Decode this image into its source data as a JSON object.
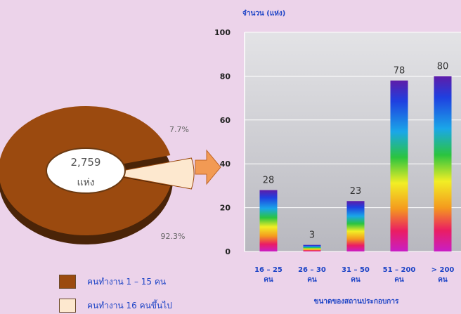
{
  "pie": {
    "center_value": "2,759",
    "center_unit": "แห่ง",
    "slices": [
      {
        "label": "คนทำงาน 1 – 15 คน",
        "percent": 92.3,
        "percent_label": "92.3%",
        "color": "#9b4a0f"
      },
      {
        "label": "คนทำงาน 16 คนขึ้นไป",
        "percent": 7.7,
        "percent_label": "7.7%",
        "color": "#fde8cf"
      }
    ]
  },
  "chart_data": {
    "type": "bar",
    "ylabel": "จำนวน (แห่ง)",
    "xlabel": "ขนาดของสถานประกอบการ",
    "categories": [
      [
        "16 – 25",
        "คน"
      ],
      [
        "26 – 30",
        "คน"
      ],
      [
        "31 – 50",
        "คน"
      ],
      [
        "51 – 200",
        "คน"
      ],
      [
        "> 200",
        "คน"
      ]
    ],
    "values": [
      28,
      3,
      23,
      78,
      80
    ],
    "value_labels": [
      "28",
      "3",
      "23",
      "78",
      "80"
    ],
    "ylim": [
      0,
      100
    ],
    "yticks": [
      "0",
      "20",
      "40",
      "60",
      "80",
      "100"
    ],
    "grid": true,
    "bar_style": "rainbow gradient"
  },
  "colors": {
    "page_background": "#ecd3ea",
    "axis_text": "#1d44c6",
    "arrow": "#f29a54"
  }
}
